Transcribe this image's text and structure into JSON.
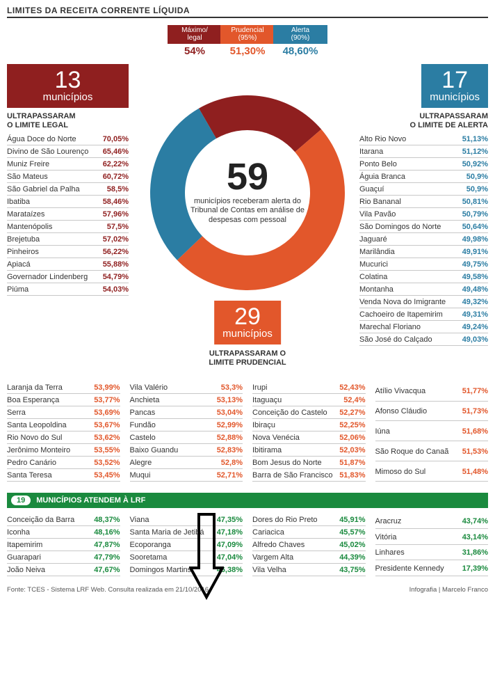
{
  "title": "LIMITES DA RECEITA CORRENTE LÍQUIDA",
  "legend": {
    "items": [
      {
        "label1": "Máximo/",
        "label2": "legal",
        "value": "54%",
        "bg": "#8f1f1f",
        "fg": "#8f1f1f"
      },
      {
        "label1": "Prudencial",
        "label2": "(95%)",
        "value": "51,30%",
        "bg": "#e2572b",
        "fg": "#e2572b"
      },
      {
        "label1": "Alerta",
        "label2": "(90%)",
        "value": "48,60%",
        "bg": "#2b7da3",
        "fg": "#2b7da3"
      }
    ]
  },
  "donut": {
    "total": "59",
    "subtitle": "municípios receberam alerta do Tribunal de Contas em análise de despesas com pessoal",
    "slices": [
      {
        "count": 13,
        "color": "#8f1f1f"
      },
      {
        "count": 29,
        "color": "#e2572b"
      },
      {
        "count": 17,
        "color": "#2b7da3"
      }
    ],
    "inner_radius": 90,
    "outer_radius": 140,
    "rotation_start_deg": -120
  },
  "left_block": {
    "count": "13",
    "word": "municípios",
    "bg": "#8f1f1f",
    "heading1": "ULTRAPASSARAM",
    "heading2": "O LIMITE LEGAL",
    "color": "#8f1f1f",
    "rows": [
      {
        "n": "Água Doce do Norte",
        "v": "70,05%"
      },
      {
        "n": "Divino de São Lourenço",
        "v": "65,46%"
      },
      {
        "n": "Muniz Freire",
        "v": "62,22%"
      },
      {
        "n": "São Mateus",
        "v": "60,72%"
      },
      {
        "n": "São Gabriel da Palha",
        "v": "58,5%"
      },
      {
        "n": "Ibatiba",
        "v": "58,46%"
      },
      {
        "n": "Marataízes",
        "v": "57,96%"
      },
      {
        "n": "Mantenópolis",
        "v": "57,5%"
      },
      {
        "n": "Brejetuba",
        "v": "57,02%"
      },
      {
        "n": "Pinheiros",
        "v": "56,22%"
      },
      {
        "n": "Apiacá",
        "v": "55,88%"
      },
      {
        "n": "Governador Lindenberg",
        "v": "54,79%"
      },
      {
        "n": "Piúma",
        "v": "54,03%"
      }
    ]
  },
  "right_block": {
    "count": "17",
    "word": "municípios",
    "bg": "#2b7da3",
    "heading1": "ULTRAPASSARAM",
    "heading2": "O LIMITE DE ALERTA",
    "color": "#2b7da3",
    "rows": [
      {
        "n": "Alto Rio Novo",
        "v": "51,13%"
      },
      {
        "n": "Itarana",
        "v": "51,12%"
      },
      {
        "n": "Ponto Belo",
        "v": "50,92%"
      },
      {
        "n": "Águia Branca",
        "v": "50,9%"
      },
      {
        "n": "Guaçuí",
        "v": "50,9%"
      },
      {
        "n": "Rio Bananal",
        "v": "50,81%"
      },
      {
        "n": "Vila Pavão",
        "v": "50,79%"
      },
      {
        "n": "São Domingos do Norte",
        "v": "50,64%"
      },
      {
        "n": "Jaguaré",
        "v": "49,98%"
      },
      {
        "n": "Marilândia",
        "v": "49,91%"
      },
      {
        "n": "Mucurici",
        "v": "49,75%"
      },
      {
        "n": "Colatina",
        "v": "49,58%"
      },
      {
        "n": "Montanha",
        "v": "49,48%"
      },
      {
        "n": "Venda Nova do Imigrante",
        "v": "49,32%"
      },
      {
        "n": "Cachoeiro de Itapemirim",
        "v": "49,31%"
      },
      {
        "n": "Marechal Floriano",
        "v": "49,24%"
      },
      {
        "n": "São José do Calçado",
        "v": "49,03%"
      }
    ]
  },
  "orange_block": {
    "count": "29",
    "word": "municípios",
    "bg": "#e2572b",
    "heading1": "ULTRAPASSARAM O",
    "heading2": "LIMITE PRUDENCIAL",
    "color": "#e2572b",
    "cols": [
      [
        {
          "n": "Laranja da Terra",
          "v": "53,99%"
        },
        {
          "n": "Boa Esperança",
          "v": "53,77%"
        },
        {
          "n": "Serra",
          "v": "53,69%"
        },
        {
          "n": "Santa Leopoldina",
          "v": "53,67%"
        },
        {
          "n": "Rio Novo do Sul",
          "v": "53,62%"
        },
        {
          "n": "Jerônimo Monteiro",
          "v": "53,55%"
        },
        {
          "n": "Pedro Canário",
          "v": "53,52%"
        },
        {
          "n": "Santa Teresa",
          "v": "53,45%"
        }
      ],
      [
        {
          "n": "Vila Valério",
          "v": "53,3%"
        },
        {
          "n": "Anchieta",
          "v": "53,13%"
        },
        {
          "n": "Pancas",
          "v": "53,04%"
        },
        {
          "n": "Fundão",
          "v": "52,99%"
        },
        {
          "n": "Castelo",
          "v": "52,88%"
        },
        {
          "n": "Baixo Guandu",
          "v": "52,83%"
        },
        {
          "n": "Alegre",
          "v": "52,8%"
        },
        {
          "n": "Muqui",
          "v": "52,71%"
        }
      ],
      [
        {
          "n": "Irupi",
          "v": "52,43%"
        },
        {
          "n": "Itaguaçu",
          "v": "52,4%"
        },
        {
          "n": "Conceição do Castelo",
          "v": "52,27%"
        },
        {
          "n": "Ibiraçu",
          "v": "52,25%"
        },
        {
          "n": "Nova Venécia",
          "v": "52,06%"
        },
        {
          "n": "Ibitirama",
          "v": "52,03%"
        },
        {
          "n": "Bom Jesus do Norte",
          "v": "51,87%"
        },
        {
          "n": "Barra de São Francisco",
          "v": "51,83%"
        }
      ],
      [
        {
          "n": "Atílio Vivacqua",
          "v": "51,77%"
        },
        {
          "n": "Afonso Cláudio",
          "v": "51,73%"
        },
        {
          "n": "Iúna",
          "v": "51,68%"
        },
        {
          "n": "São Roque do Canaã",
          "v": "51,53%"
        },
        {
          "n": "Mimoso do Sul",
          "v": "51,48%"
        }
      ]
    ]
  },
  "green_block": {
    "pill": "19",
    "label": "MUNICÍPIOS ATENDEM À LRF",
    "color": "#1a8a3e",
    "cols": [
      [
        {
          "n": "Conceição da Barra",
          "v": "48,37%"
        },
        {
          "n": "Iconha",
          "v": "48,16%"
        },
        {
          "n": "Itapemirim",
          "v": "47,87%"
        },
        {
          "n": "Guarapari",
          "v": "47,79%"
        },
        {
          "n": "João Neiva",
          "v": "47,67%"
        }
      ],
      [
        {
          "n": "Viana",
          "v": "47,35%"
        },
        {
          "n": "Santa Maria de Jetibá",
          "v": "47,18%"
        },
        {
          "n": "Ecoporanga",
          "v": "47,09%"
        },
        {
          "n": "Sooretama",
          "v": "47,04%"
        },
        {
          "n": "Domingos Martins",
          "v": "46,38%"
        }
      ],
      [
        {
          "n": "Dores do Rio Preto",
          "v": "45,91%"
        },
        {
          "n": "Cariacica",
          "v": "45,57%"
        },
        {
          "n": "Alfredo Chaves",
          "v": "45,02%"
        },
        {
          "n": "Vargem Alta",
          "v": "44,39%"
        },
        {
          "n": "Vila Velha",
          "v": "43,75%"
        }
      ],
      [
        {
          "n": "Aracruz",
          "v": "43,74%"
        },
        {
          "n": "Vitória",
          "v": "43,14%"
        },
        {
          "n": "Linhares",
          "v": "31,86%"
        },
        {
          "n": "Presidente Kennedy",
          "v": "17,39%"
        }
      ]
    ]
  },
  "footer": {
    "left": "Fonte: TCES - Sistema LRF Web. Consulta realizada em 21/10/2016",
    "right": "Infografia | Marcelo Franco"
  }
}
